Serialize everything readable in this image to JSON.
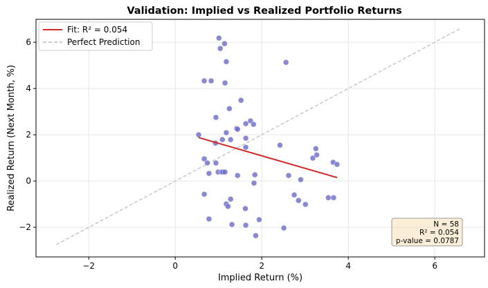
{
  "chart_data": {
    "type": "scatter",
    "title": "Validation: Implied vs Realized Portfolio Returns",
    "xlabel": "Implied Return (%)",
    "ylabel": "Realized Return (Next Month, %)",
    "xlim": [
      -3.22,
      7.15
    ],
    "ylim": [
      -3.28,
      6.99
    ],
    "xticks": [
      -2,
      0,
      2,
      4,
      6
    ],
    "yticks": [
      -2,
      0,
      2,
      4,
      6
    ],
    "xtick_labels": [
      "−2",
      "0",
      "2",
      "4",
      "6"
    ],
    "ytick_labels": [
      "−2",
      "0",
      "2",
      "4",
      "6"
    ],
    "grid": true,
    "legend_position": "top-left",
    "legend": [
      {
        "label": "Fit: R² = 0.054",
        "style": "line",
        "color": "#d62728"
      },
      {
        "label": "Perfect Prediction",
        "style": "dashed",
        "color": "#bbbbbb"
      }
    ],
    "point_color": "#6a6acb",
    "fit_line": {
      "x": [
        0.54,
        3.74
      ],
      "y": [
        1.88,
        0.15
      ]
    },
    "perfect_line": {
      "x": [
        -2.75,
        6.6
      ],
      "y": [
        -2.75,
        6.6
      ]
    },
    "points": [
      [
        1.01,
        6.18
      ],
      [
        1.14,
        5.94
      ],
      [
        1.04,
        5.73
      ],
      [
        2.56,
        5.13
      ],
      [
        1.18,
        5.16
      ],
      [
        0.67,
        4.33
      ],
      [
        0.83,
        4.33
      ],
      [
        1.15,
        4.24
      ],
      [
        1.52,
        3.49
      ],
      [
        1.25,
        3.13
      ],
      [
        0.94,
        2.75
      ],
      [
        1.63,
        2.48
      ],
      [
        1.74,
        2.6
      ],
      [
        1.81,
        2.45
      ],
      [
        1.42,
        2.27
      ],
      [
        1.44,
        2.24
      ],
      [
        1.18,
        2.09
      ],
      [
        0.54,
        2.0
      ],
      [
        1.63,
        1.85
      ],
      [
        1.09,
        1.79
      ],
      [
        1.28,
        1.79
      ],
      [
        0.93,
        1.64
      ],
      [
        1.63,
        1.46
      ],
      [
        2.42,
        1.55
      ],
      [
        3.25,
        1.4
      ],
      [
        3.27,
        1.13
      ],
      [
        3.18,
        0.99
      ],
      [
        0.67,
        0.96
      ],
      [
        0.74,
        0.78
      ],
      [
        0.94,
        0.78
      ],
      [
        3.65,
        0.81
      ],
      [
        3.74,
        0.72
      ],
      [
        0.99,
        0.39
      ],
      [
        0.78,
        0.33
      ],
      [
        1.07,
        0.39
      ],
      [
        1.1,
        0.39
      ],
      [
        1.15,
        0.39
      ],
      [
        1.44,
        0.24
      ],
      [
        1.84,
        0.27
      ],
      [
        2.62,
        0.24
      ],
      [
        2.9,
        0.06
      ],
      [
        1.82,
        -0.09
      ],
      [
        0.67,
        -0.57
      ],
      [
        2.75,
        -0.6
      ],
      [
        1.28,
        -0.78
      ],
      [
        2.85,
        -0.84
      ],
      [
        3.01,
        -1.01
      ],
      [
        1.18,
        -0.99
      ],
      [
        1.22,
        -1.1
      ],
      [
        1.62,
        -1.19
      ],
      [
        3.54,
        -0.72
      ],
      [
        3.66,
        -0.72
      ],
      [
        0.78,
        -1.64
      ],
      [
        1.94,
        -1.67
      ],
      [
        1.31,
        -1.88
      ],
      [
        1.63,
        -1.91
      ],
      [
        2.51,
        -2.03
      ],
      [
        1.86,
        -2.36
      ]
    ],
    "stats_box": {
      "n": "N = 58",
      "r2": "R² = 0.054",
      "p": "p-value = 0.0787"
    }
  }
}
